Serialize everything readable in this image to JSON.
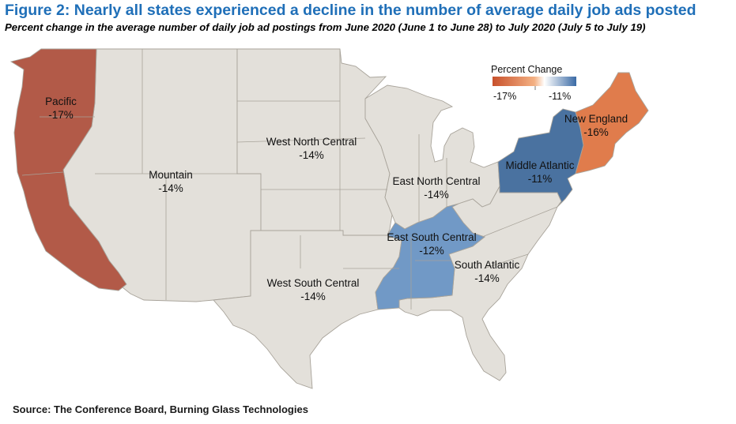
{
  "header": {
    "title": "Figure 2: Nearly all states experienced a decline in the number of average daily job ads posted",
    "subtitle": "Percent change in the average number of daily job ad postings from June 2020 (June 1 to June 28) to July 2020 (July 5 to July 19)"
  },
  "source": "Source: The Conference Board, Burning Glass Technologies",
  "legend": {
    "title": "Percent Change",
    "min_label": "-17%",
    "max_label": "-11%",
    "min_color": "#c8512c",
    "mid_color": "#f4b183",
    "max_color": "#3a6aa5"
  },
  "colors": {
    "neutral": "#e3e0da",
    "border": "#a8a39a"
  },
  "regions": {
    "pacific": {
      "name": "Pacific",
      "value": "-17%",
      "color": "#b25a48"
    },
    "mountain": {
      "name": "Mountain",
      "value": "-14%",
      "color": "#e3e0da"
    },
    "west_north_central": {
      "name": "West North Central",
      "value": "-14%",
      "color": "#e3e0da"
    },
    "west_south_central": {
      "name": "West South Central",
      "value": "-14%",
      "color": "#e3e0da"
    },
    "east_north_central": {
      "name": "East North Central",
      "value": "-14%",
      "color": "#e3e0da"
    },
    "east_south_central": {
      "name": "East South Central",
      "value": "-12%",
      "color": "#7199c6"
    },
    "south_atlantic": {
      "name": "South Atlantic",
      "value": "-14%",
      "color": "#e3e0da"
    },
    "middle_atlantic": {
      "name": "Middle Atlantic",
      "value": "-11%",
      "color": "#4a72a0"
    },
    "new_england": {
      "name": "New England",
      "value": "-16%",
      "color": "#e07c4c"
    }
  }
}
